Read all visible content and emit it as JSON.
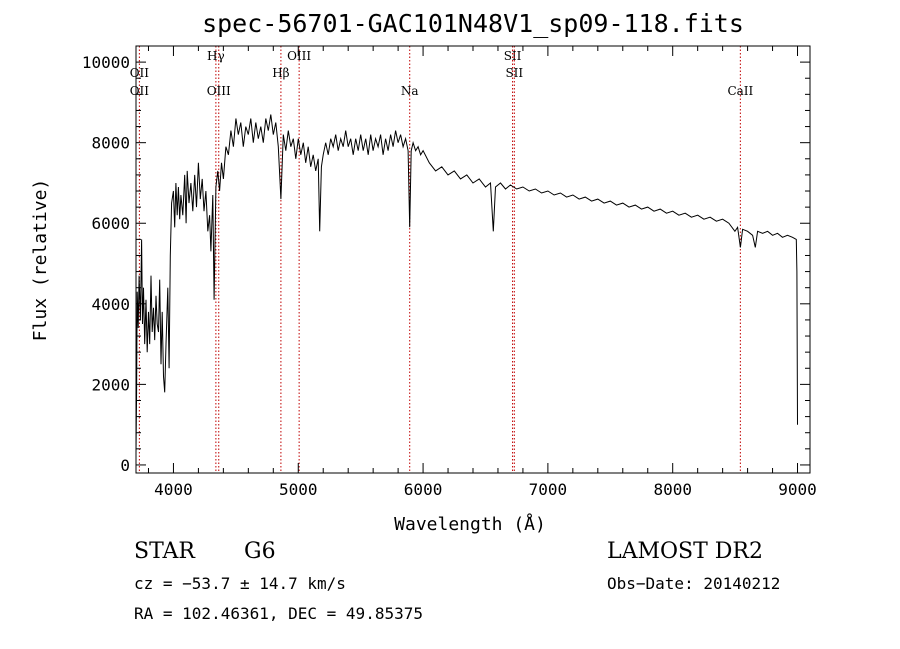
{
  "chart_data": {
    "type": "line",
    "title": "spec-56701-GAC101N48V1_sp09-118.fits",
    "xlabel": "Wavelength (Å)",
    "ylabel": "Flux (relative)",
    "xlim": [
      3700,
      9100
    ],
    "ylim": [
      -200,
      10400
    ],
    "xticks": [
      4000,
      5000,
      6000,
      7000,
      8000,
      9000
    ],
    "yticks": [
      0,
      2000,
      4000,
      6000,
      8000,
      10000
    ],
    "grid": false,
    "series": [
      {
        "values": [
          [
            3700,
            300
          ],
          [
            3705,
            1800
          ],
          [
            3710,
            4300
          ],
          [
            3718,
            3400
          ],
          [
            3725,
            4700
          ],
          [
            3735,
            3600
          ],
          [
            3745,
            5600
          ],
          [
            3752,
            3500
          ],
          [
            3760,
            4400
          ],
          [
            3770,
            3000
          ],
          [
            3780,
            4100
          ],
          [
            3790,
            2800
          ],
          [
            3800,
            3800
          ],
          [
            3810,
            3000
          ],
          [
            3820,
            4700
          ],
          [
            3830,
            3300
          ],
          [
            3840,
            3900
          ],
          [
            3850,
            3100
          ],
          [
            3860,
            4200
          ],
          [
            3870,
            3500
          ],
          [
            3880,
            3300
          ],
          [
            3890,
            4600
          ],
          [
            3900,
            2500
          ],
          [
            3910,
            3800
          ],
          [
            3920,
            2200
          ],
          [
            3930,
            1800
          ],
          [
            3940,
            3000
          ],
          [
            3955,
            4400
          ],
          [
            3965,
            2400
          ],
          [
            3975,
            5200
          ],
          [
            3985,
            6500
          ],
          [
            4000,
            6800
          ],
          [
            4010,
            5900
          ],
          [
            4020,
            7000
          ],
          [
            4030,
            6200
          ],
          [
            4040,
            6900
          ],
          [
            4050,
            6100
          ],
          [
            4060,
            6700
          ],
          [
            4075,
            6200
          ],
          [
            4090,
            7200
          ],
          [
            4101,
            6000
          ],
          [
            4110,
            7300
          ],
          [
            4125,
            6500
          ],
          [
            4140,
            7000
          ],
          [
            4155,
            6300
          ],
          [
            4170,
            7200
          ],
          [
            4185,
            6400
          ],
          [
            4200,
            7500
          ],
          [
            4215,
            6600
          ],
          [
            4230,
            7100
          ],
          [
            4245,
            6300
          ],
          [
            4260,
            6800
          ],
          [
            4275,
            5800
          ],
          [
            4290,
            6200
          ],
          [
            4300,
            5300
          ],
          [
            4315,
            6700
          ],
          [
            4326,
            4100
          ],
          [
            4340,
            6900
          ],
          [
            4355,
            7300
          ],
          [
            4370,
            6800
          ],
          [
            4385,
            7500
          ],
          [
            4400,
            7100
          ],
          [
            4420,
            7900
          ],
          [
            4440,
            7700
          ],
          [
            4460,
            8300
          ],
          [
            4480,
            7900
          ],
          [
            4500,
            8600
          ],
          [
            4520,
            8200
          ],
          [
            4540,
            8500
          ],
          [
            4560,
            7900
          ],
          [
            4580,
            8400
          ],
          [
            4600,
            8200
          ],
          [
            4620,
            8600
          ],
          [
            4640,
            8000
          ],
          [
            4660,
            8500
          ],
          [
            4680,
            8100
          ],
          [
            4700,
            8400
          ],
          [
            4720,
            8000
          ],
          [
            4740,
            8600
          ],
          [
            4760,
            8300
          ],
          [
            4780,
            8700
          ],
          [
            4800,
            8200
          ],
          [
            4820,
            8500
          ],
          [
            4840,
            7900
          ],
          [
            4861,
            6600
          ],
          [
            4880,
            8200
          ],
          [
            4900,
            7800
          ],
          [
            4920,
            8300
          ],
          [
            4940,
            7900
          ],
          [
            4960,
            8100
          ],
          [
            4980,
            7600
          ],
          [
            5000,
            8100
          ],
          [
            5020,
            7700
          ],
          [
            5040,
            8000
          ],
          [
            5060,
            7500
          ],
          [
            5080,
            7900
          ],
          [
            5100,
            7400
          ],
          [
            5120,
            7700
          ],
          [
            5140,
            7300
          ],
          [
            5160,
            7600
          ],
          [
            5172,
            5800
          ],
          [
            5185,
            7400
          ],
          [
            5200,
            7700
          ],
          [
            5220,
            8000
          ],
          [
            5240,
            7700
          ],
          [
            5260,
            8100
          ],
          [
            5280,
            7900
          ],
          [
            5300,
            8200
          ],
          [
            5320,
            7800
          ],
          [
            5340,
            8100
          ],
          [
            5360,
            7900
          ],
          [
            5380,
            8300
          ],
          [
            5400,
            7900
          ],
          [
            5420,
            8100
          ],
          [
            5440,
            7700
          ],
          [
            5460,
            8100
          ],
          [
            5480,
            7800
          ],
          [
            5500,
            8200
          ],
          [
            5520,
            7800
          ],
          [
            5540,
            8100
          ],
          [
            5560,
            7700
          ],
          [
            5580,
            8200
          ],
          [
            5600,
            7800
          ],
          [
            5620,
            8100
          ],
          [
            5640,
            7900
          ],
          [
            5660,
            8200
          ],
          [
            5680,
            7700
          ],
          [
            5700,
            8100
          ],
          [
            5720,
            7800
          ],
          [
            5740,
            8200
          ],
          [
            5760,
            7900
          ],
          [
            5780,
            8300
          ],
          [
            5800,
            8000
          ],
          [
            5820,
            8200
          ],
          [
            5840,
            7900
          ],
          [
            5860,
            8100
          ],
          [
            5880,
            7800
          ],
          [
            5893,
            5900
          ],
          [
            5905,
            7800
          ],
          [
            5920,
            8000
          ],
          [
            5940,
            7800
          ],
          [
            5960,
            7900
          ],
          [
            5980,
            7700
          ],
          [
            6000,
            7800
          ],
          [
            6050,
            7500
          ],
          [
            6100,
            7300
          ],
          [
            6150,
            7400
          ],
          [
            6200,
            7200
          ],
          [
            6250,
            7300
          ],
          [
            6300,
            7100
          ],
          [
            6350,
            7200
          ],
          [
            6400,
            7000
          ],
          [
            6450,
            7100
          ],
          [
            6500,
            6900
          ],
          [
            6540,
            7000
          ],
          [
            6563,
            5800
          ],
          [
            6580,
            6900
          ],
          [
            6620,
            7000
          ],
          [
            6660,
            6850
          ],
          [
            6700,
            6950
          ],
          [
            6750,
            6850
          ],
          [
            6800,
            6900
          ],
          [
            6850,
            6800
          ],
          [
            6900,
            6850
          ],
          [
            6950,
            6750
          ],
          [
            7000,
            6800
          ],
          [
            7050,
            6700
          ],
          [
            7100,
            6750
          ],
          [
            7150,
            6650
          ],
          [
            7200,
            6700
          ],
          [
            7250,
            6600
          ],
          [
            7300,
            6650
          ],
          [
            7350,
            6550
          ],
          [
            7400,
            6600
          ],
          [
            7450,
            6500
          ],
          [
            7500,
            6550
          ],
          [
            7550,
            6450
          ],
          [
            7600,
            6500
          ],
          [
            7650,
            6400
          ],
          [
            7700,
            6450
          ],
          [
            7750,
            6350
          ],
          [
            7800,
            6400
          ],
          [
            7850,
            6300
          ],
          [
            7900,
            6350
          ],
          [
            7950,
            6250
          ],
          [
            8000,
            6300
          ],
          [
            8050,
            6200
          ],
          [
            8100,
            6250
          ],
          [
            8150,
            6150
          ],
          [
            8200,
            6200
          ],
          [
            8250,
            6100
          ],
          [
            8300,
            6150
          ],
          [
            8350,
            6050
          ],
          [
            8400,
            6100
          ],
          [
            8450,
            6000
          ],
          [
            8498,
            5800
          ],
          [
            8520,
            5900
          ],
          [
            8542,
            5400
          ],
          [
            8560,
            5850
          ],
          [
            8600,
            5800
          ],
          [
            8640,
            5700
          ],
          [
            8662,
            5400
          ],
          [
            8680,
            5800
          ],
          [
            8720,
            5750
          ],
          [
            8760,
            5800
          ],
          [
            8800,
            5700
          ],
          [
            8840,
            5750
          ],
          [
            8880,
            5650
          ],
          [
            8920,
            5700
          ],
          [
            8960,
            5650
          ],
          [
            8990,
            5600
          ],
          [
            8995,
            4800
          ],
          [
            9000,
            1000
          ]
        ]
      }
    ],
    "lines": [
      {
        "x": 4340,
        "labels": [
          "Hγ"
        ],
        "row": 0
      },
      {
        "x": 4363,
        "labels": [
          "OIII"
        ],
        "row": 2
      },
      {
        "x": 4861,
        "labels": [
          "Hβ"
        ],
        "row": 1
      },
      {
        "x": 5007,
        "labels": [
          "OIII"
        ],
        "row": 0
      },
      {
        "x": 5893,
        "labels": [
          "Na"
        ],
        "row": 2
      },
      {
        "x": 6717,
        "labels": [
          "SII"
        ],
        "row": 0
      },
      {
        "x": 6731,
        "labels": [
          "SII"
        ],
        "row": 1
      },
      {
        "x": 8542,
        "labels": [
          "CaII"
        ],
        "row": 2
      },
      {
        "x": 3727,
        "labels": [
          "OII",
          "OII"
        ],
        "row": 1
      }
    ]
  },
  "info": {
    "class": "STAR",
    "subclass": "G6",
    "survey": "LAMOST DR2",
    "cz": "cz = −53.7 ± 14.7 km/s",
    "obs_date": "Obs−Date: 20140212",
    "coords": "RA = 102.46361, DEC =  49.85375"
  }
}
